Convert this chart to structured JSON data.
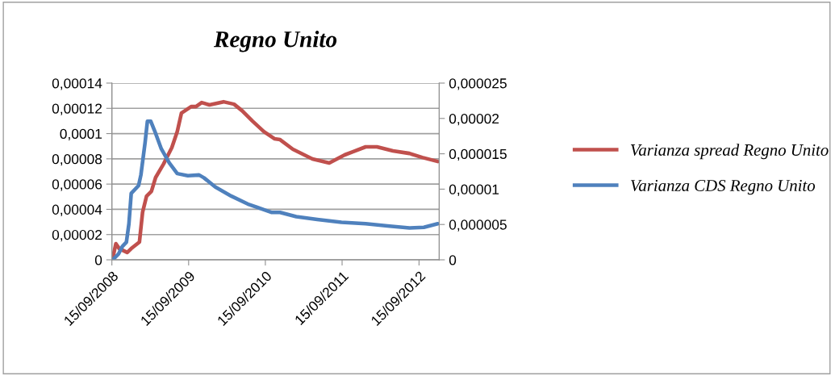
{
  "chart_data": {
    "type": "line",
    "title": "Regno Unito",
    "legend": "right",
    "grid": "y",
    "marker": "none",
    "line_style": "solid",
    "xlim": [
      "2008-09-15",
      "2012-12-20"
    ],
    "xticks": [
      {
        "value": "2008-09-15",
        "label": "15/09/2008"
      },
      {
        "value": "2009-09-15",
        "label": "15/09/2009"
      },
      {
        "value": "2010-09-15",
        "label": "15/09/2010"
      },
      {
        "value": "2011-09-15",
        "label": "15/09/2011"
      },
      {
        "value": "2012-09-15",
        "label": "15/09/2012"
      }
    ],
    "ylim": [
      0,
      0.00014
    ],
    "yticks": [
      {
        "value": 0,
        "label": "0"
      },
      {
        "value": 2e-05,
        "label": "0,00002"
      },
      {
        "value": 4e-05,
        "label": "0,00004"
      },
      {
        "value": 6e-05,
        "label": "0,00006"
      },
      {
        "value": 8e-05,
        "label": "0,00008"
      },
      {
        "value": 0.0001,
        "label": "0,0001"
      },
      {
        "value": 0.00012,
        "label": "0,00012"
      },
      {
        "value": 0.00014,
        "label": "0,00014"
      }
    ],
    "y2lim": [
      0,
      2.5e-05
    ],
    "y2ticks": [
      {
        "value": 0,
        "label": "0"
      },
      {
        "value": 5e-06,
        "label": "0,000005"
      },
      {
        "value": 1e-05,
        "label": "0,00001"
      },
      {
        "value": 1.5e-05,
        "label": "0,000015"
      },
      {
        "value": 2e-05,
        "label": "0,00002"
      },
      {
        "value": 2.5e-05,
        "label": "0,000025"
      }
    ],
    "series": [
      {
        "name": "Varianza spread Regno Unito",
        "color": "#c0504d",
        "x": [
          "2008-09-19",
          "2008-10-04",
          "2008-10-20",
          "2008-11-27",
          "2008-12-16",
          "2009-01-24",
          "2009-02-08",
          "2009-02-27",
          "2009-03-22",
          "2009-04-11",
          "2009-05-19",
          "2009-06-27",
          "2009-07-23",
          "2009-08-12",
          "2009-09-27",
          "2009-10-20",
          "2009-11-16",
          "2009-12-23",
          "2010-02-28",
          "2010-04-19",
          "2010-05-27",
          "2010-07-16",
          "2010-09-08",
          "2010-10-28",
          "2010-11-24",
          "2011-01-24",
          "2011-04-27",
          "2011-07-16",
          "2011-09-27",
          "2011-11-05",
          "2012-01-05",
          "2012-02-28",
          "2012-05-14",
          "2012-07-31",
          "2012-09-30",
          "2012-12-13"
        ],
        "values": [
          1.3e-06,
          1.28e-05,
          8.9e-06,
          5.8e-06,
          8.9e-06,
          1.41e-05,
          3.77e-05,
          5.05e-05,
          5.43e-05,
          6.52e-05,
          7.6e-05,
          8.88e-05,
          0.0001016,
          0.0001163,
          0.0001214,
          0.0001214,
          0.0001246,
          0.0001227,
          0.0001252,
          0.0001233,
          0.0001182,
          0.0001099,
          0.0001016,
          9.59e-05,
          9.52e-05,
          8.76e-05,
          7.99e-05,
          7.67e-05,
          8.31e-05,
          8.56e-05,
          8.95e-05,
          8.95e-05,
          8.63e-05,
          8.43e-05,
          8.11e-05,
          7.79e-05
        ]
      },
      {
        "name": "Varianza CDS Regno Unito",
        "color": "#4f81bd",
        "axis": "y2",
        "x": [
          "2008-09-19",
          "2008-10-16",
          "2008-11-04",
          "2008-11-23",
          "2008-12-05",
          "2008-12-16",
          "2009-01-20",
          "2009-01-31",
          "2009-02-20",
          "2009-03-03",
          "2009-03-19",
          "2009-04-07",
          "2009-05-08",
          "2009-06-15",
          "2009-07-23",
          "2009-09-11",
          "2009-11-04",
          "2009-11-27",
          "2010-01-20",
          "2010-04-07",
          "2010-06-23",
          "2010-09-08",
          "2010-10-16",
          "2010-11-24",
          "2011-02-09",
          "2011-05-20",
          "2011-09-12",
          "2012-01-05",
          "2012-04-18",
          "2012-07-31",
          "2012-10-08",
          "2012-12-13"
        ],
        "values": [
          0,
          8e-07,
          1.9e-06,
          2.5e-06,
          5.1e-06,
          9.4e-06,
          1.05e-05,
          1.2e-05,
          1.66e-05,
          1.96e-05,
          1.96e-05,
          1.82e-05,
          1.57e-05,
          1.37e-05,
          1.22e-05,
          1.19e-05,
          1.2e-05,
          1.16e-05,
          1.03e-05,
          9e-06,
          7.9e-06,
          7.1e-06,
          6.7e-06,
          6.7e-06,
          6.1e-06,
          5.7e-06,
          5.3e-06,
          5.1e-06,
          4.8e-06,
          4.5e-06,
          4.6e-06,
          5.1e-06
        ]
      }
    ]
  }
}
